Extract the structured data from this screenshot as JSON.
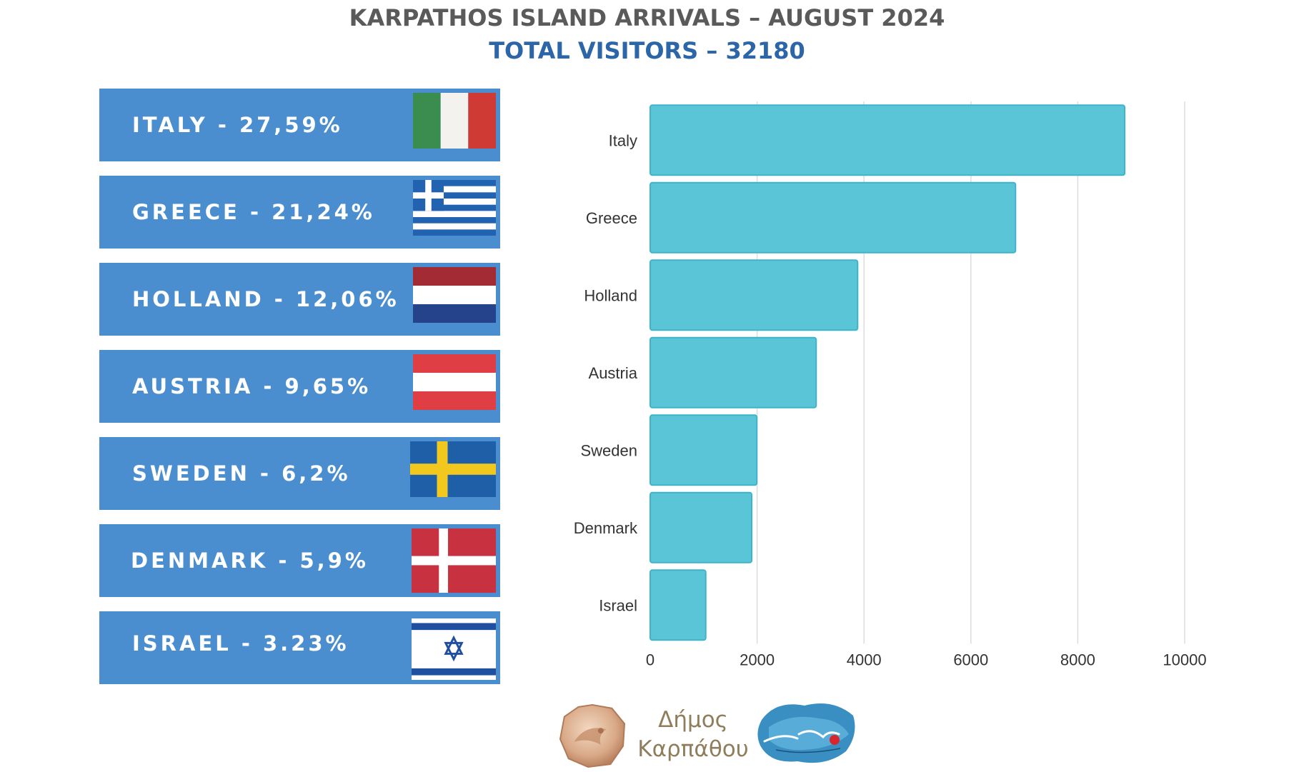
{
  "header": {
    "title": "KARPATHOS ISLAND ARRIVALS – AUGUST 2024",
    "subtitle": "TOTAL VISITORS – 32180"
  },
  "panels": [
    {
      "label": "ITALY - 27,59%",
      "flag": "italy-flag-icon"
    },
    {
      "label": "GREECE - 21,24%",
      "flag": "greece-flag-icon"
    },
    {
      "label": "HOLLAND - 12,06%",
      "flag": "netherlands-flag-icon"
    },
    {
      "label": "AUSTRIA - 9,65%",
      "flag": "austria-flag-icon"
    },
    {
      "label": "SWEDEN - 6,2%",
      "flag": "sweden-flag-icon"
    },
    {
      "label": "DENMARK - 5,9%",
      "flag": "denmark-flag-icon"
    },
    {
      "label": "ISRAEL - 3.23%",
      "flag": "israel-flag-icon"
    }
  ],
  "colors": {
    "panel": "#4b8ed0",
    "bar": "#5bc5d8",
    "bar_border": "#3fb3c8",
    "grid": "#dddddd",
    "title": "#5a5a5a",
    "subtitle": "#2c66a8"
  },
  "chart_data": {
    "type": "bar",
    "orientation": "horizontal",
    "categories": [
      "Italy",
      "Greece",
      "Holland",
      "Austria",
      "Sweden",
      "Denmark",
      "Israel"
    ],
    "values": [
      8878,
      6835,
      3881,
      3105,
      1995,
      1899,
      1039
    ],
    "xlim": [
      0,
      10000
    ],
    "xticks": [
      0,
      2000,
      4000,
      6000,
      8000,
      10000
    ],
    "grid": true
  },
  "footer": {
    "municipality_line1": "Δήμος",
    "municipality_line2": "Καρπάθου",
    "coin_logo": "municipality-coin-icon",
    "brand_logo": "karpathos-brand-logo"
  }
}
